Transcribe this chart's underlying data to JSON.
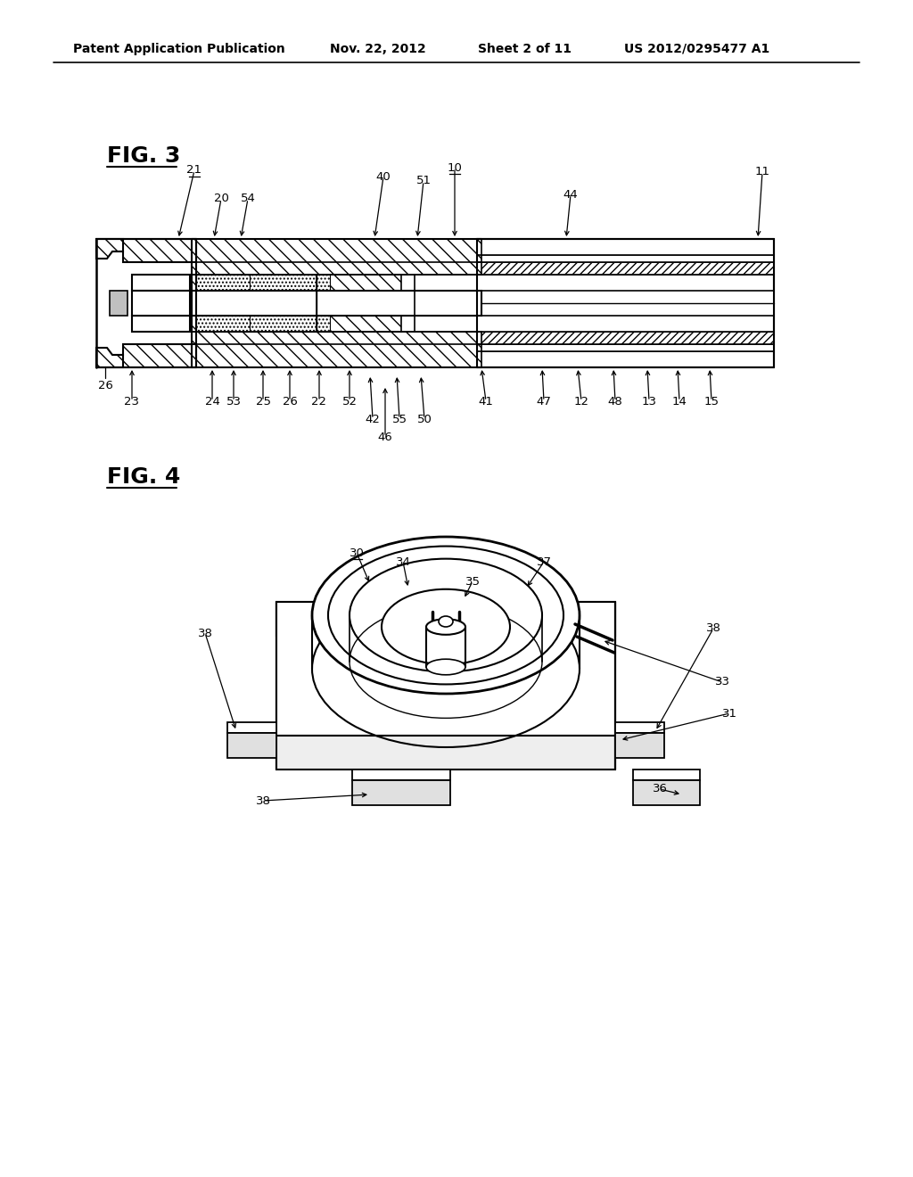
{
  "bg_color": "#ffffff",
  "header_text": "Patent Application Publication",
  "header_date": "Nov. 22, 2012",
  "header_sheet": "Sheet 2 of 11",
  "header_patent": "US 2012/0295477 A1",
  "fig3_label": "FIG. 3",
  "fig4_label": "FIG. 4",
  "line_color": "#000000"
}
